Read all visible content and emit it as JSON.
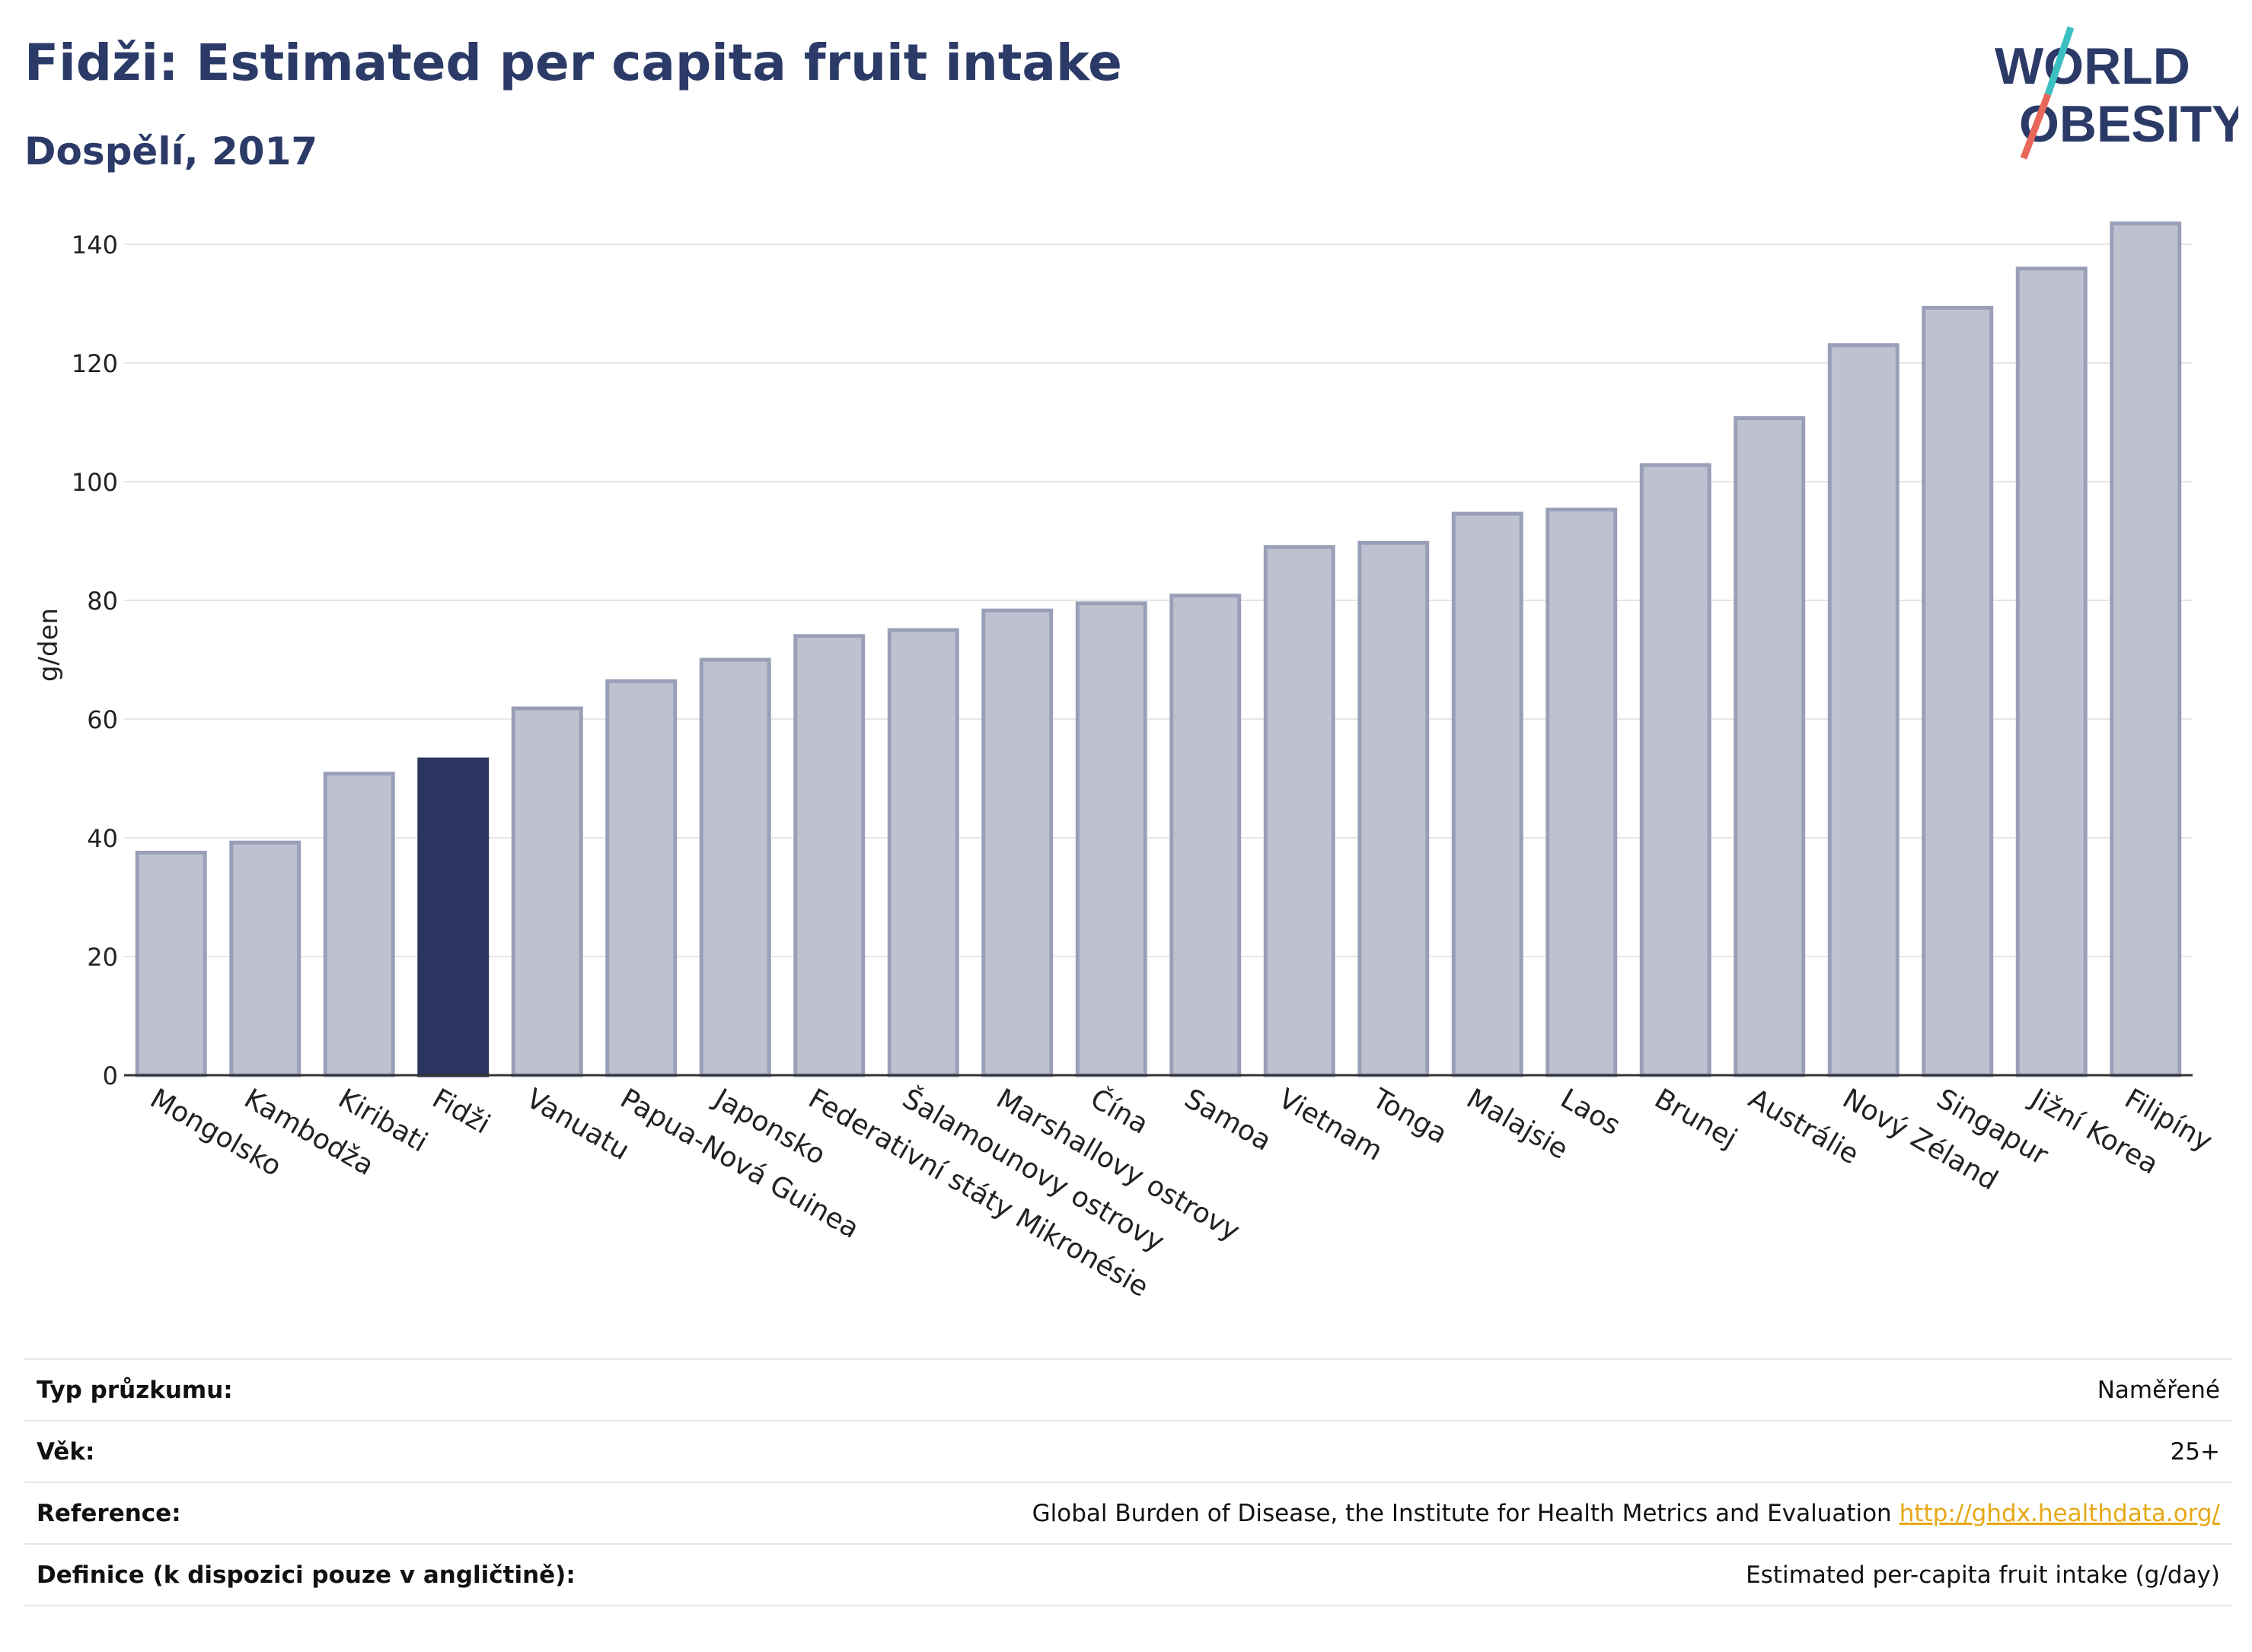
{
  "header": {
    "title": "Fidži: Estimated per capita fruit intake",
    "subtitle": "Dospělí, 2017"
  },
  "logo": {
    "line1": "WORLD",
    "line2": "OBESITY",
    "colors": {
      "text": "#2b3a67",
      "slash_top": "#3bbfc1",
      "slash_bottom": "#e8665a"
    }
  },
  "chart_data": {
    "type": "bar",
    "ylabel": "g/den",
    "ylim": [
      0,
      145
    ],
    "yticks": [
      0,
      20,
      40,
      60,
      80,
      100,
      120,
      140
    ],
    "grid": true,
    "highlight": "Fidži",
    "colors": {
      "bar": "#bec2d0",
      "bar_edge": "#9a9fb8",
      "highlight": "#2b3660",
      "axis": "#333333",
      "grid": "#e6e6e6"
    },
    "categories": [
      "Mongolsko",
      "Kambodža",
      "Kiribati",
      "Fidži",
      "Vanuatu",
      "Papua-Nová Guinea",
      "Japonsko",
      "Federativní státy Mikronésie",
      "Šalamounovy ostrovy",
      "Marshallovy ostrovy",
      "Čína",
      "Samoa",
      "Vietnam",
      "Tonga",
      "Malajsie",
      "Laos",
      "Brunej",
      "Austrálie",
      "Nový Zéland",
      "Singapur",
      "Jižní Korea",
      "Filipíny"
    ],
    "values": [
      37.5,
      39.2,
      50.8,
      53.2,
      61.8,
      66.4,
      70,
      74,
      75,
      78.3,
      79.5,
      80.8,
      89,
      89.7,
      94.6,
      95.3,
      102.8,
      110.7,
      123,
      129.3,
      135.9,
      143.5
    ]
  },
  "meta": {
    "rows": [
      {
        "key": "Typ průzkumu:",
        "value": "Naměřené"
      },
      {
        "key": "Věk:",
        "value": "25+"
      },
      {
        "key": "Reference:",
        "value": "Global Burden of Disease, the Institute for Health Metrics and Evaluation",
        "link": "http://ghdx.healthdata.org/"
      },
      {
        "key": "Definice (k dispozici pouze v angličtině):",
        "value": "Estimated per-capita fruit intake (g/day)"
      }
    ]
  }
}
